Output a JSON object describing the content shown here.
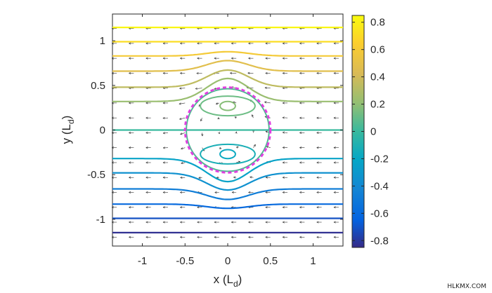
{
  "chart_data": {
    "type": "streamline-quiver",
    "xlabel": "x (L",
    "xlabel_sub": "d",
    "xlabel_close": ")",
    "ylabel": "y (L",
    "ylabel_sub": "d",
    "ylabel_close": ")",
    "xlim": [
      -1.35,
      1.35
    ],
    "ylim": [
      -1.3,
      1.3
    ],
    "x_ticks": [
      -1,
      -0.5,
      0,
      0.5,
      1
    ],
    "x_tick_labels": [
      "-1",
      "-0.5",
      "0",
      "0.5",
      "1"
    ],
    "y_ticks": [
      1,
      0.5,
      0,
      -0.5,
      -1
    ],
    "y_tick_labels": [
      "1",
      "0.5",
      "0",
      "-0.5",
      "-1"
    ],
    "colorbar": {
      "colormap": "parula",
      "clim": [
        -0.85,
        0.85
      ],
      "ticks": [
        0.8,
        0.6,
        0.4,
        0.2,
        0,
        -0.2,
        -0.4,
        -0.6,
        -0.8
      ],
      "tick_labels": [
        "0.8",
        "0.6",
        "0.4",
        "0.2",
        "0",
        "-0.2",
        "-0.4",
        "-0.6",
        "-0.8"
      ]
    },
    "streamline_levels_y": [
      1.15,
      0.99,
      0.83,
      0.66,
      0.48,
      0.32,
      0.0,
      -0.32,
      -0.48,
      -0.66,
      -0.83,
      -0.99,
      -1.15
    ],
    "vortex": {
      "center": [
        0,
        0
      ],
      "radius": 0.5,
      "boundary_color": "#e040e0"
    },
    "flow_direction": "negative-x",
    "grid": false
  },
  "watermark": "HLKMX.COM"
}
